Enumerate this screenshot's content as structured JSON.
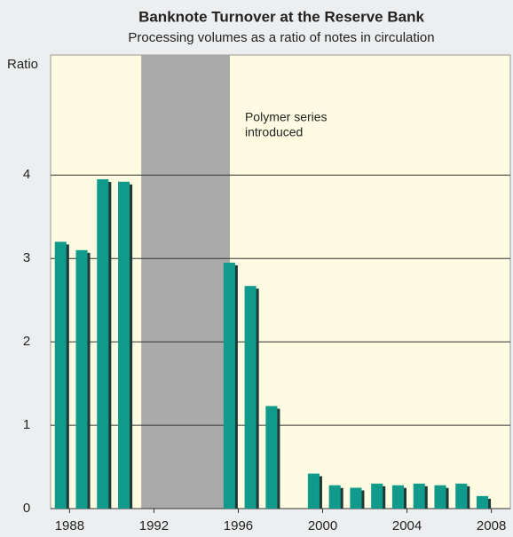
{
  "chart_data": {
    "type": "bar",
    "title": "Banknote Turnover at the Reserve Bank",
    "subtitle": "Processing volumes as a ratio of notes in circulation",
    "y_label": "Ratio",
    "annotation": [
      "Polymer series",
      "introduced"
    ],
    "shade_x": [
      1991.4,
      1995.6
    ],
    "x": [
      1988,
      1989,
      1990,
      1991,
      1996,
      1997,
      1998,
      2000,
      2001,
      2002,
      2003,
      2004,
      2005,
      2006,
      2007,
      2008
    ],
    "values": [
      3.2,
      3.1,
      3.95,
      3.92,
      2.95,
      2.67,
      1.23,
      0.42,
      0.28,
      0.25,
      0.3,
      0.28,
      0.3,
      0.28,
      0.3,
      0.15
    ],
    "color": "#0f9a8b",
    "xlim": [
      1987.1,
      2008.9
    ],
    "xticks": [
      1988,
      1992,
      1996,
      2000,
      2004,
      2008
    ],
    "ylim": [
      0,
      5.44
    ],
    "yticks": [
      0,
      1,
      2,
      3,
      4
    ],
    "grid": true
  }
}
